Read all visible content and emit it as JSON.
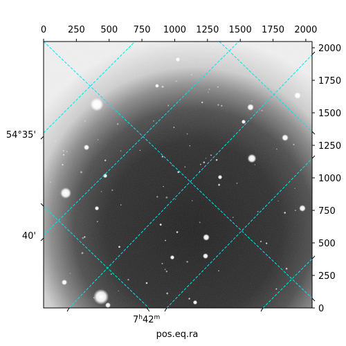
{
  "pixel_axes": {
    "xlim": [
      0,
      2048
    ],
    "ylim": [
      0,
      2048
    ],
    "x_tick_values": [
      0,
      250,
      500,
      750,
      1000,
      1250,
      1500,
      1750,
      2000
    ],
    "x_tick_labels": [
      "0",
      "250",
      "500",
      "750",
      "1000",
      "1250",
      "1500",
      "1750",
      "2000"
    ],
    "y_tick_values": [
      0,
      250,
      500,
      750,
      1000,
      1250,
      1500,
      1750,
      2000
    ],
    "y_tick_labels": [
      "0",
      "250",
      "500",
      "750",
      "1000",
      "1250",
      "1500",
      "1750",
      "2000"
    ]
  },
  "world_axes": {
    "dec_labels": [
      "54°35'",
      "40'"
    ],
    "ra_label_main": "7",
    "ra_label_h": "h",
    "ra_label_min": "42",
    "ra_label_m": "m",
    "xlabel": "pos.eq.ra"
  },
  "style": {
    "grid_color": "#00e5ee",
    "sky_background": "astronomical grayscale image with bright vignetting halo"
  }
}
